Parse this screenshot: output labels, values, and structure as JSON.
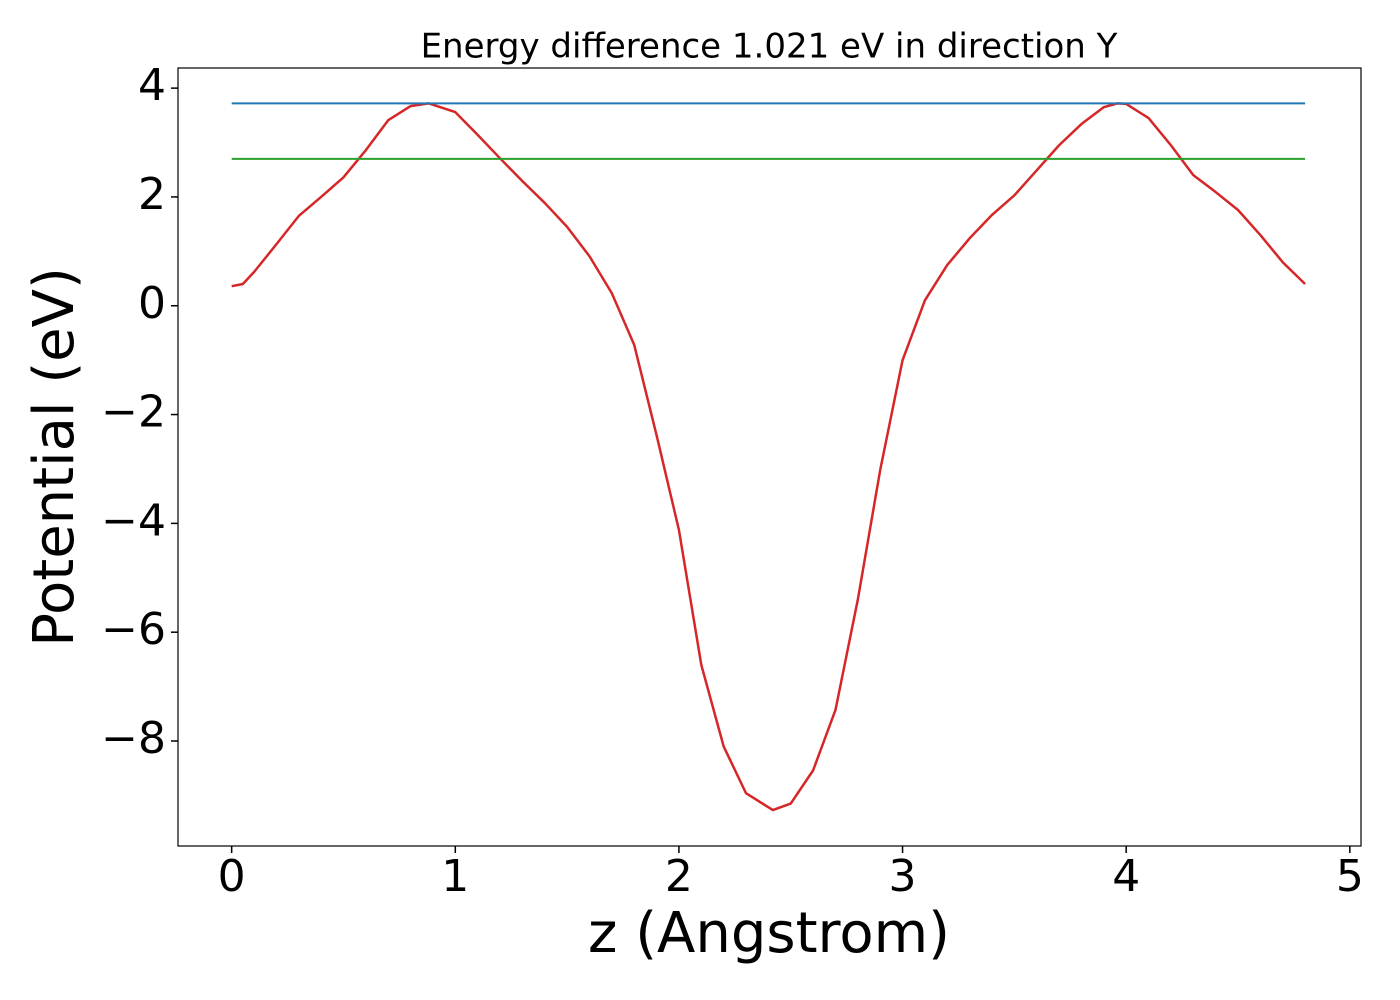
{
  "chart_data": {
    "type": "line",
    "title": "Energy difference 1.021 eV in direction Y",
    "xlabel": "z (Angstrom)",
    "ylabel": "Potential (eV)",
    "xlim": [
      -0.24,
      5.05
    ],
    "ylim": [
      -9.93,
      4.37
    ],
    "xticks": [
      0,
      1,
      2,
      3,
      4,
      5
    ],
    "yticks": [
      {
        "value": -8,
        "label": "−8"
      },
      {
        "value": -6,
        "label": "−6"
      },
      {
        "value": -4,
        "label": "−4"
      },
      {
        "value": -2,
        "label": "−2"
      },
      0,
      2,
      4
    ],
    "grid": false,
    "series": [
      {
        "color": "#d62728",
        "x": [
          0,
          0.05,
          0.1,
          0.2,
          0.3,
          0.4,
          0.5,
          0.6,
          0.7,
          0.8,
          0.88,
          1.0,
          1.1,
          1.2,
          1.3,
          1.4,
          1.5,
          1.6,
          1.7,
          1.8,
          1.9,
          2.0,
          2.1,
          2.2,
          2.3,
          2.42,
          2.5,
          2.6,
          2.7,
          2.8,
          2.9,
          3.0,
          3.1,
          3.2,
          3.3,
          3.4,
          3.5,
          3.6,
          3.7,
          3.8,
          3.9,
          3.96,
          4.0,
          4.1,
          4.2,
          4.3,
          4.4,
          4.5,
          4.6,
          4.7,
          4.8
        ],
        "values": [
          0.36,
          0.4,
          0.62,
          1.13,
          1.65,
          2.0,
          2.36,
          2.86,
          3.41,
          3.67,
          3.72,
          3.56,
          3.14,
          2.71,
          2.29,
          1.89,
          1.45,
          0.91,
          0.23,
          -0.72,
          -2.38,
          -4.12,
          -6.6,
          -8.1,
          -8.96,
          -9.27,
          -9.15,
          -8.54,
          -7.43,
          -5.4,
          -3.02,
          -1.0,
          0.1,
          0.75,
          1.24,
          1.67,
          2.03,
          2.49,
          2.95,
          3.34,
          3.65,
          3.72,
          3.71,
          3.45,
          2.95,
          2.4,
          2.09,
          1.76,
          1.3,
          0.8,
          0.4
        ]
      },
      {
        "color": "#1f77b4",
        "x": [
          0,
          4.8
        ],
        "values": [
          3.72,
          3.72
        ]
      },
      {
        "color": "#2ca02c",
        "x": [
          0,
          4.8
        ],
        "values": [
          2.7,
          2.7
        ]
      }
    ]
  }
}
